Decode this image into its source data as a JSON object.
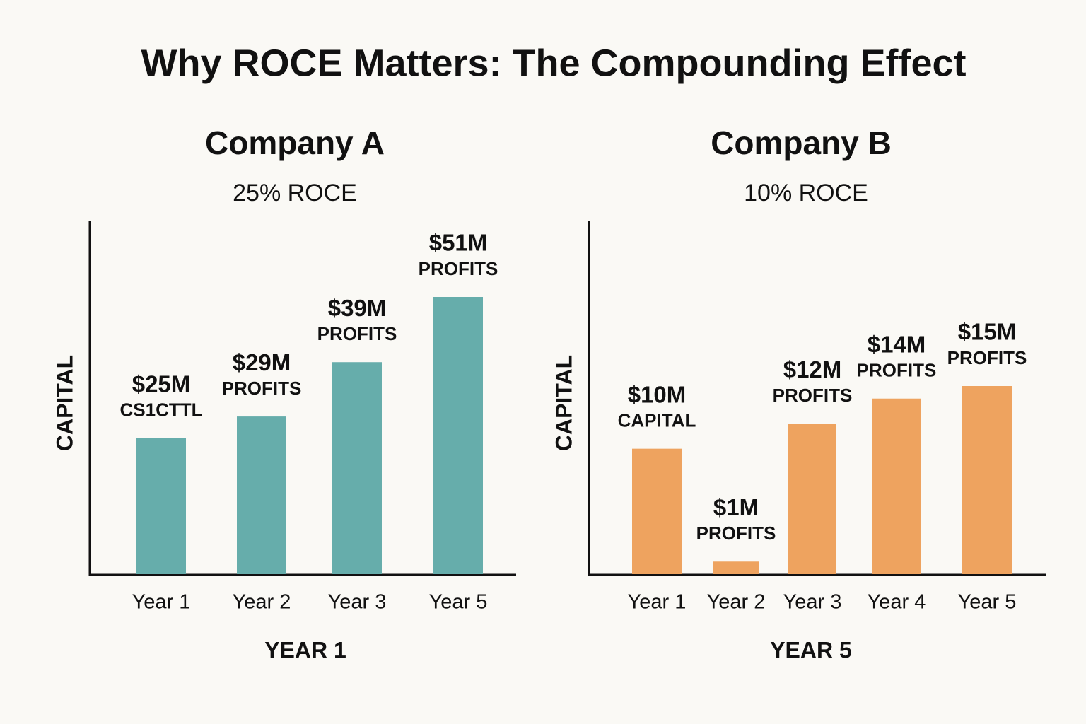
{
  "title": "Why ROCE Matters: The Compounding Effect",
  "chart_data": [
    {
      "type": "bar",
      "title": "Company A",
      "subtitle": "25% ROCE",
      "ylabel": "CAPITAL",
      "xlabel": "YEAR 1",
      "categories": [
        "Year 1",
        "Year 2",
        "Year 3",
        "Year 5"
      ],
      "values": [
        25,
        29,
        39,
        51
      ],
      "value_labels": [
        "$25M",
        "$29M",
        "$39M",
        "$51M"
      ],
      "value_captions": [
        "CS1CTTL",
        "PROFITS",
        "PROFITS",
        "PROFITS"
      ],
      "color": "#66adab"
    },
    {
      "type": "bar",
      "title": "Company B",
      "subtitle": "10% ROCE",
      "ylabel": "CAPITAL",
      "xlabel": "YEAR 5",
      "categories": [
        "Year 1",
        "Year 2",
        "Year 3",
        "Year 4",
        "Year 5"
      ],
      "values": [
        10,
        1,
        12,
        14,
        15
      ],
      "value_labels": [
        "$10M",
        "$1M",
        "$12M",
        "$14M",
        "$15M"
      ],
      "value_captions": [
        "CAPITAL",
        "PROFITS",
        "PROFITS",
        "PROFITS",
        "PROFITS"
      ],
      "color": "#eea35f"
    }
  ]
}
